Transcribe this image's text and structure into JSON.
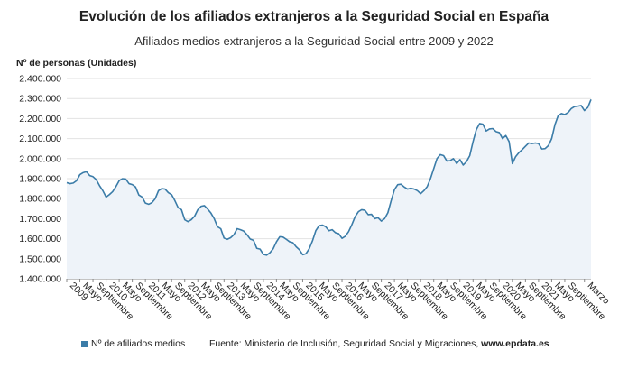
{
  "header": {
    "title": "Evolución de los afiliados extranjeros a la Seguridad Social en España",
    "subtitle": "Afiliados medios extranjeros a la Seguridad Social entre 2009 y 2022",
    "ylabel": "Nº de personas (Unidades)"
  },
  "legend": {
    "label": "Nº de afiliados medios",
    "color": "#3b7ca8"
  },
  "source": {
    "prefix": "Fuente: Ministerio de Inclusión, Seguridad Social y Migraciones, ",
    "site": "www.epdata.es"
  },
  "chart_data": {
    "type": "area",
    "ylim": [
      1400000,
      2400000
    ],
    "yticks": [
      {
        "value": 1400000,
        "label": "1.400.000"
      },
      {
        "value": 1500000,
        "label": "1.500.000"
      },
      {
        "value": 1600000,
        "label": "1.600.000"
      },
      {
        "value": 1700000,
        "label": "1.700.000"
      },
      {
        "value": 1800000,
        "label": "1.800.000"
      },
      {
        "value": 1900000,
        "label": "1.900.000"
      },
      {
        "value": 2000000,
        "label": "2.000.000"
      },
      {
        "value": 2100000,
        "label": "2.100.000"
      },
      {
        "value": 2200000,
        "label": "2.200.000"
      },
      {
        "value": 2300000,
        "label": "2.300.000"
      },
      {
        "value": 2400000,
        "label": "2.400.000"
      }
    ],
    "xticks": [
      {
        "index": 0,
        "label": "2009"
      },
      {
        "index": 4,
        "label": "Mayo"
      },
      {
        "index": 8,
        "label": "Septiembre"
      },
      {
        "index": 12,
        "label": "2010"
      },
      {
        "index": 16,
        "label": "Mayo"
      },
      {
        "index": 20,
        "label": "Septiembre"
      },
      {
        "index": 24,
        "label": "2011"
      },
      {
        "index": 28,
        "label": "Mayo"
      },
      {
        "index": 32,
        "label": "Septiembre"
      },
      {
        "index": 36,
        "label": "2012"
      },
      {
        "index": 40,
        "label": "Mayo"
      },
      {
        "index": 44,
        "label": "Septiembre"
      },
      {
        "index": 48,
        "label": "2013"
      },
      {
        "index": 52,
        "label": "Mayo"
      },
      {
        "index": 56,
        "label": "Septiembre"
      },
      {
        "index": 60,
        "label": "2014"
      },
      {
        "index": 64,
        "label": "Mayo"
      },
      {
        "index": 68,
        "label": "Septiembre"
      },
      {
        "index": 72,
        "label": "2015"
      },
      {
        "index": 76,
        "label": "Mayo"
      },
      {
        "index": 80,
        "label": "Septiembre"
      },
      {
        "index": 84,
        "label": "2016"
      },
      {
        "index": 88,
        "label": "Mayo"
      },
      {
        "index": 92,
        "label": "Septiembre"
      },
      {
        "index": 96,
        "label": "2017"
      },
      {
        "index": 100,
        "label": "Mayo"
      },
      {
        "index": 104,
        "label": "Septiembre"
      },
      {
        "index": 108,
        "label": "2018"
      },
      {
        "index": 112,
        "label": "Mayo"
      },
      {
        "index": 116,
        "label": "Septiembre"
      },
      {
        "index": 120,
        "label": "2019"
      },
      {
        "index": 124,
        "label": "Mayo"
      },
      {
        "index": 128,
        "label": "Septiembre"
      },
      {
        "index": 132,
        "label": "2020"
      },
      {
        "index": 136,
        "label": "Mayo"
      },
      {
        "index": 140,
        "label": "Septiembre"
      },
      {
        "index": 144,
        "label": "2021"
      },
      {
        "index": 148,
        "label": "Mayo"
      },
      {
        "index": 152,
        "label": "Septiembre"
      },
      {
        "index": 158,
        "label": "Marzo"
      }
    ],
    "grid": true,
    "series": [
      {
        "name": "Nº de afiliados medios",
        "values": [
          1880000,
          1875000,
          1878000,
          1890000,
          1920000,
          1930000,
          1935000,
          1915000,
          1910000,
          1895000,
          1865000,
          1840000,
          1808000,
          1820000,
          1835000,
          1860000,
          1890000,
          1900000,
          1898000,
          1875000,
          1870000,
          1858000,
          1818000,
          1808000,
          1778000,
          1772000,
          1780000,
          1800000,
          1840000,
          1850000,
          1848000,
          1830000,
          1820000,
          1790000,
          1755000,
          1745000,
          1695000,
          1685000,
          1695000,
          1712000,
          1745000,
          1762000,
          1765000,
          1748000,
          1728000,
          1700000,
          1660000,
          1650000,
          1603000,
          1597000,
          1605000,
          1620000,
          1650000,
          1645000,
          1638000,
          1620000,
          1598000,
          1592000,
          1552000,
          1548000,
          1522000,
          1518000,
          1530000,
          1550000,
          1585000,
          1610000,
          1608000,
          1597000,
          1585000,
          1580000,
          1560000,
          1545000,
          1520000,
          1525000,
          1550000,
          1590000,
          1640000,
          1665000,
          1668000,
          1660000,
          1640000,
          1645000,
          1630000,
          1625000,
          1602000,
          1612000,
          1635000,
          1670000,
          1710000,
          1735000,
          1745000,
          1742000,
          1720000,
          1722000,
          1700000,
          1705000,
          1688000,
          1700000,
          1730000,
          1790000,
          1845000,
          1870000,
          1872000,
          1858000,
          1848000,
          1852000,
          1848000,
          1840000,
          1825000,
          1840000,
          1860000,
          1900000,
          1950000,
          2000000,
          2020000,
          2015000,
          1988000,
          1990000,
          2000000,
          1975000,
          1995000,
          1968000,
          1985000,
          2015000,
          2085000,
          2145000,
          2175000,
          2172000,
          2138000,
          2148000,
          2150000,
          2135000,
          2130000,
          2100000,
          2115000,
          2085000,
          1975000,
          2010000,
          2030000,
          2045000,
          2062000,
          2078000,
          2075000,
          2078000,
          2075000,
          2048000,
          2050000,
          2065000,
          2100000,
          2170000,
          2215000,
          2225000,
          2220000,
          2230000,
          2250000,
          2260000,
          2262000,
          2265000,
          2240000,
          2255000,
          2295000
        ]
      }
    ]
  }
}
